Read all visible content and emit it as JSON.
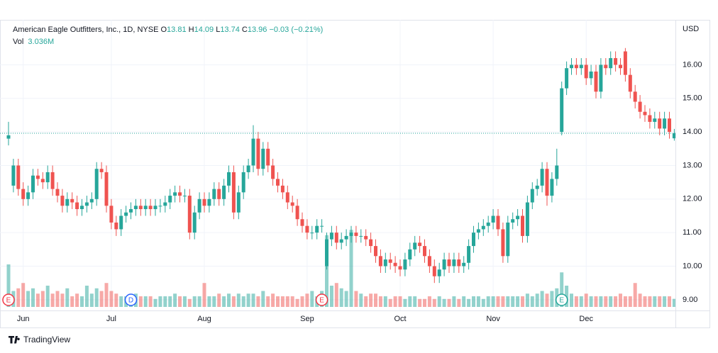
{
  "chart_data": {
    "type": "candlestick",
    "header": {
      "symbol": "American Eagle Outfitters, Inc., 1D, NYSE",
      "ohlc_labels": [
        "O",
        "H",
        "L",
        "C"
      ],
      "change": "−0.03 (−0.21%)",
      "vol_label": "Vol",
      "vol_value": "3.036M"
    },
    "currency": "USD",
    "brand": "TradingView",
    "categories": [
      null,
      null,
      null,
      "Jun",
      null,
      null,
      null,
      null,
      null,
      null,
      null,
      null,
      null,
      null,
      null,
      null,
      null,
      null,
      null,
      null,
      null,
      "Jul",
      null,
      null,
      null,
      null,
      null,
      null,
      null,
      null,
      null,
      null,
      null,
      null,
      null,
      null,
      null,
      null,
      null,
      null,
      "Aug",
      null,
      null,
      null,
      null,
      null,
      null,
      null,
      null,
      null,
      null,
      null,
      null,
      null,
      null,
      null,
      null,
      null,
      null,
      null,
      null,
      "Sep",
      null,
      null,
      null,
      null,
      null,
      null,
      null,
      null,
      null,
      null,
      null,
      null,
      null,
      null,
      null,
      null,
      null,
      null,
      "Oct",
      null,
      null,
      null,
      null,
      null,
      null,
      null,
      null,
      null,
      null,
      null,
      null,
      null,
      null,
      null,
      null,
      null,
      null,
      "Nov",
      null,
      null,
      null,
      null,
      null,
      null,
      null,
      null,
      null,
      null,
      null,
      null,
      null,
      null,
      null,
      null,
      null,
      null,
      "Dec",
      null,
      null,
      null,
      null,
      null,
      null,
      null,
      null,
      null,
      null,
      null,
      null,
      null,
      null,
      null,
      null,
      null,
      null
    ],
    "open": [
      13.8,
      12.4,
      13.0,
      12.3,
      12.0,
      12.2,
      12.7,
      12.6,
      12.5,
      12.8,
      12.3,
      12.1,
      11.8,
      12.0,
      11.9,
      11.7,
      11.8,
      11.9,
      12.0,
      12.9,
      12.8,
      11.8,
      11.3,
      11.1,
      11.5,
      11.6,
      11.7,
      11.8,
      11.7,
      11.8,
      11.7,
      11.8,
      11.8,
      11.9,
      12.1,
      12.2,
      12.1,
      12.1,
      11.0,
      11.6,
      12.0,
      11.8,
      12.0,
      12.3,
      12.0,
      12.4,
      12.8,
      11.6,
      12.2,
      12.8,
      13.0,
      13.8,
      12.9,
      13.5,
      13.0,
      12.6,
      12.4,
      12.2,
      11.9,
      11.8,
      11.4,
      11.2,
      11.0,
      11.0,
      11.2,
      10.0,
      10.8,
      11.0,
      10.7,
      10.8,
      10.9,
      11.0,
      10.9,
      10.9,
      10.8,
      10.6,
      10.3,
      10.0,
      10.2,
      10.1,
      10.0,
      9.9,
      10.2,
      10.5,
      10.7,
      10.6,
      10.3,
      10.0,
      9.7,
      9.9,
      10.2,
      10.0,
      10.2,
      10.0,
      10.1,
      10.6,
      11.0,
      11.1,
      11.2,
      11.3,
      11.5,
      11.1,
      10.3,
      11.3,
      11.4,
      11.5,
      10.9,
      11.9,
      12.3,
      12.4,
      12.9,
      12.1,
      12.6,
      14.0,
      15.3,
      15.9,
      16.0,
      15.9,
      16.0,
      15.6,
      15.8,
      15.2,
      16.0,
      15.9,
      16.2,
      16.0,
      16.4,
      15.7,
      15.2,
      14.9,
      14.6,
      14.5,
      14.3,
      14.4,
      14.1,
      14.4,
      13.81
    ],
    "high": [
      14.3,
      13.2,
      13.2,
      12.5,
      12.4,
      12.9,
      12.9,
      12.8,
      13.0,
      13.0,
      12.5,
      12.3,
      12.2,
      12.2,
      12.1,
      12.0,
      12.1,
      12.2,
      13.1,
      13.1,
      13.0,
      12.0,
      11.5,
      11.7,
      11.8,
      11.9,
      12.0,
      12.0,
      12.0,
      12.0,
      12.0,
      12.0,
      12.1,
      12.3,
      12.4,
      12.4,
      12.3,
      12.3,
      11.8,
      12.2,
      12.2,
      12.2,
      12.5,
      12.5,
      12.6,
      13.0,
      13.0,
      12.4,
      13.0,
      13.2,
      14.2,
      14.0,
      13.7,
      13.7,
      13.2,
      12.8,
      12.6,
      12.4,
      12.1,
      12.0,
      11.6,
      11.4,
      11.2,
      11.4,
      11.4,
      11.0,
      11.2,
      11.2,
      11.0,
      11.1,
      11.2,
      11.2,
      11.1,
      11.1,
      11.0,
      10.8,
      10.5,
      10.4,
      10.4,
      10.3,
      10.2,
      10.4,
      10.7,
      10.9,
      10.9,
      10.8,
      10.5,
      10.2,
      10.1,
      10.4,
      10.4,
      10.4,
      10.4,
      10.3,
      10.8,
      11.2,
      11.3,
      11.4,
      11.5,
      11.7,
      11.7,
      11.3,
      11.5,
      11.6,
      11.7,
      11.7,
      12.1,
      12.5,
      12.6,
      13.1,
      13.1,
      12.8,
      13.5,
      15.5,
      16.1,
      16.2,
      16.2,
      16.2,
      16.2,
      16.0,
      16.0,
      16.2,
      16.2,
      16.4,
      16.4,
      16.2,
      16.5,
      15.9,
      15.4,
      15.1,
      14.8,
      14.7,
      14.6,
      14.6,
      14.6,
      14.6,
      14.09
    ],
    "low": [
      13.6,
      12.2,
      12.1,
      11.8,
      11.8,
      12.0,
      12.4,
      12.3,
      12.3,
      12.1,
      11.9,
      11.6,
      11.6,
      11.7,
      11.5,
      11.5,
      11.6,
      11.7,
      11.8,
      12.6,
      11.6,
      11.1,
      10.9,
      10.9,
      11.3,
      11.4,
      11.5,
      11.5,
      11.5,
      11.5,
      11.5,
      11.6,
      11.6,
      11.7,
      11.9,
      11.9,
      11.9,
      10.8,
      10.8,
      11.4,
      11.6,
      11.6,
      11.8,
      11.8,
      11.8,
      12.2,
      11.4,
      11.4,
      12.0,
      12.6,
      12.8,
      12.7,
      12.7,
      12.8,
      12.4,
      12.2,
      12.0,
      11.7,
      11.6,
      11.2,
      11.0,
      10.8,
      10.8,
      10.8,
      11.0,
      9.9,
      10.6,
      10.5,
      10.5,
      10.6,
      10.7,
      10.7,
      10.7,
      10.6,
      10.4,
      10.1,
      9.8,
      9.8,
      9.9,
      9.8,
      9.7,
      9.7,
      10.0,
      10.3,
      10.4,
      10.1,
      9.8,
      9.5,
      9.5,
      9.7,
      9.8,
      9.8,
      9.8,
      9.8,
      9.9,
      10.4,
      10.8,
      10.9,
      11.0,
      11.1,
      10.9,
      10.1,
      10.1,
      11.1,
      11.2,
      10.7,
      10.7,
      11.7,
      12.1,
      12.2,
      11.8,
      11.9,
      12.4,
      13.9,
      15.1,
      15.7,
      15.7,
      15.7,
      15.4,
      15.4,
      15.0,
      15.0,
      15.7,
      15.7,
      15.8,
      15.7,
      15.5,
      15.0,
      14.7,
      14.4,
      14.3,
      14.1,
      14.1,
      13.9,
      13.9,
      13.8,
      13.74
    ],
    "close": [
      13.9,
      13.0,
      12.3,
      12.0,
      12.2,
      12.7,
      12.6,
      12.5,
      12.8,
      12.3,
      12.1,
      11.8,
      12.0,
      11.9,
      11.7,
      11.8,
      11.9,
      12.0,
      12.9,
      12.8,
      11.8,
      11.3,
      11.1,
      11.5,
      11.6,
      11.7,
      11.8,
      11.7,
      11.8,
      11.7,
      11.8,
      11.8,
      11.9,
      12.1,
      12.2,
      12.1,
      12.1,
      11.0,
      11.6,
      12.0,
      11.8,
      12.0,
      12.3,
      12.0,
      12.4,
      12.8,
      11.6,
      12.2,
      12.8,
      13.0,
      13.8,
      12.9,
      13.5,
      13.0,
      12.6,
      12.4,
      12.2,
      11.9,
      11.8,
      11.4,
      11.2,
      11.0,
      11.0,
      11.2,
      11.2,
      10.8,
      11.0,
      10.7,
      10.8,
      10.9,
      11.0,
      10.9,
      10.9,
      10.8,
      10.6,
      10.3,
      10.0,
      10.2,
      10.1,
      10.0,
      9.9,
      10.2,
      10.5,
      10.7,
      10.6,
      10.3,
      10.0,
      9.7,
      9.9,
      10.2,
      10.0,
      10.2,
      10.0,
      10.1,
      10.6,
      11.0,
      11.1,
      11.2,
      11.3,
      11.5,
      11.1,
      10.3,
      11.3,
      11.4,
      11.5,
      10.9,
      11.9,
      12.3,
      12.4,
      12.9,
      12.1,
      12.6,
      13.0,
      15.3,
      15.9,
      16.0,
      15.9,
      16.0,
      15.6,
      15.8,
      15.2,
      16.0,
      15.9,
      16.2,
      16.0,
      15.9,
      15.7,
      15.2,
      14.9,
      14.6,
      14.5,
      14.3,
      14.4,
      14.1,
      14.4,
      14.0,
      13.96
    ],
    "volume": [
      16,
      6,
      7,
      9,
      6,
      7,
      5,
      6,
      8,
      5,
      6,
      5,
      7,
      4,
      5,
      4,
      8,
      5,
      7,
      6,
      9,
      6,
      5,
      4,
      4,
      4,
      5,
      4,
      4,
      4,
      3,
      4,
      4,
      4,
      5,
      4,
      4,
      3,
      4,
      4,
      9,
      4,
      4,
      5,
      4,
      5,
      4,
      5,
      4,
      5,
      5,
      4,
      6,
      4,
      5,
      4,
      4,
      4,
      4,
      3,
      4,
      5,
      6,
      4,
      6,
      27,
      8,
      9,
      7,
      6,
      29,
      6,
      5,
      4,
      5,
      5,
      4,
      4,
      3,
      4,
      4,
      3,
      4,
      4,
      3,
      3,
      4,
      3,
      4,
      3,
      3,
      4,
      3,
      4,
      3,
      4,
      4,
      3,
      4,
      4,
      4,
      4,
      4,
      4,
      4,
      4,
      5,
      4,
      5,
      6,
      5,
      6,
      7,
      13,
      8,
      5,
      4,
      4,
      5,
      4,
      4,
      4,
      4,
      4,
      4,
      5,
      4,
      4,
      9,
      5,
      4,
      4,
      4,
      4,
      4,
      4,
      3.036
    ],
    "ylim": [
      8.68,
      17.34
    ],
    "yticks": [
      {
        "value": 9,
        "label": "9.00"
      },
      {
        "value": 10,
        "label": "10.00"
      },
      {
        "value": 11,
        "label": "11.00"
      },
      {
        "value": 12,
        "label": "12.00"
      },
      {
        "value": 13,
        "label": "13.00"
      },
      {
        "value": 14,
        "label": "14.00"
      },
      {
        "value": 15,
        "label": "15.00"
      },
      {
        "value": 16,
        "label": "16.00"
      }
    ],
    "volume_lim": [
      0,
      40
    ],
    "up_color": "#26a69a",
    "down_color": "#ef5350",
    "grid": true,
    "price_line": true,
    "events": [
      {
        "label": "E",
        "index": 0,
        "color": "#f23645"
      },
      {
        "label": "D",
        "index": 25,
        "color": "#2962ff"
      },
      {
        "label": "E",
        "index": 64,
        "color": "#f23645"
      },
      {
        "label": "E",
        "index": 113,
        "color": "#26a69a"
      }
    ]
  }
}
